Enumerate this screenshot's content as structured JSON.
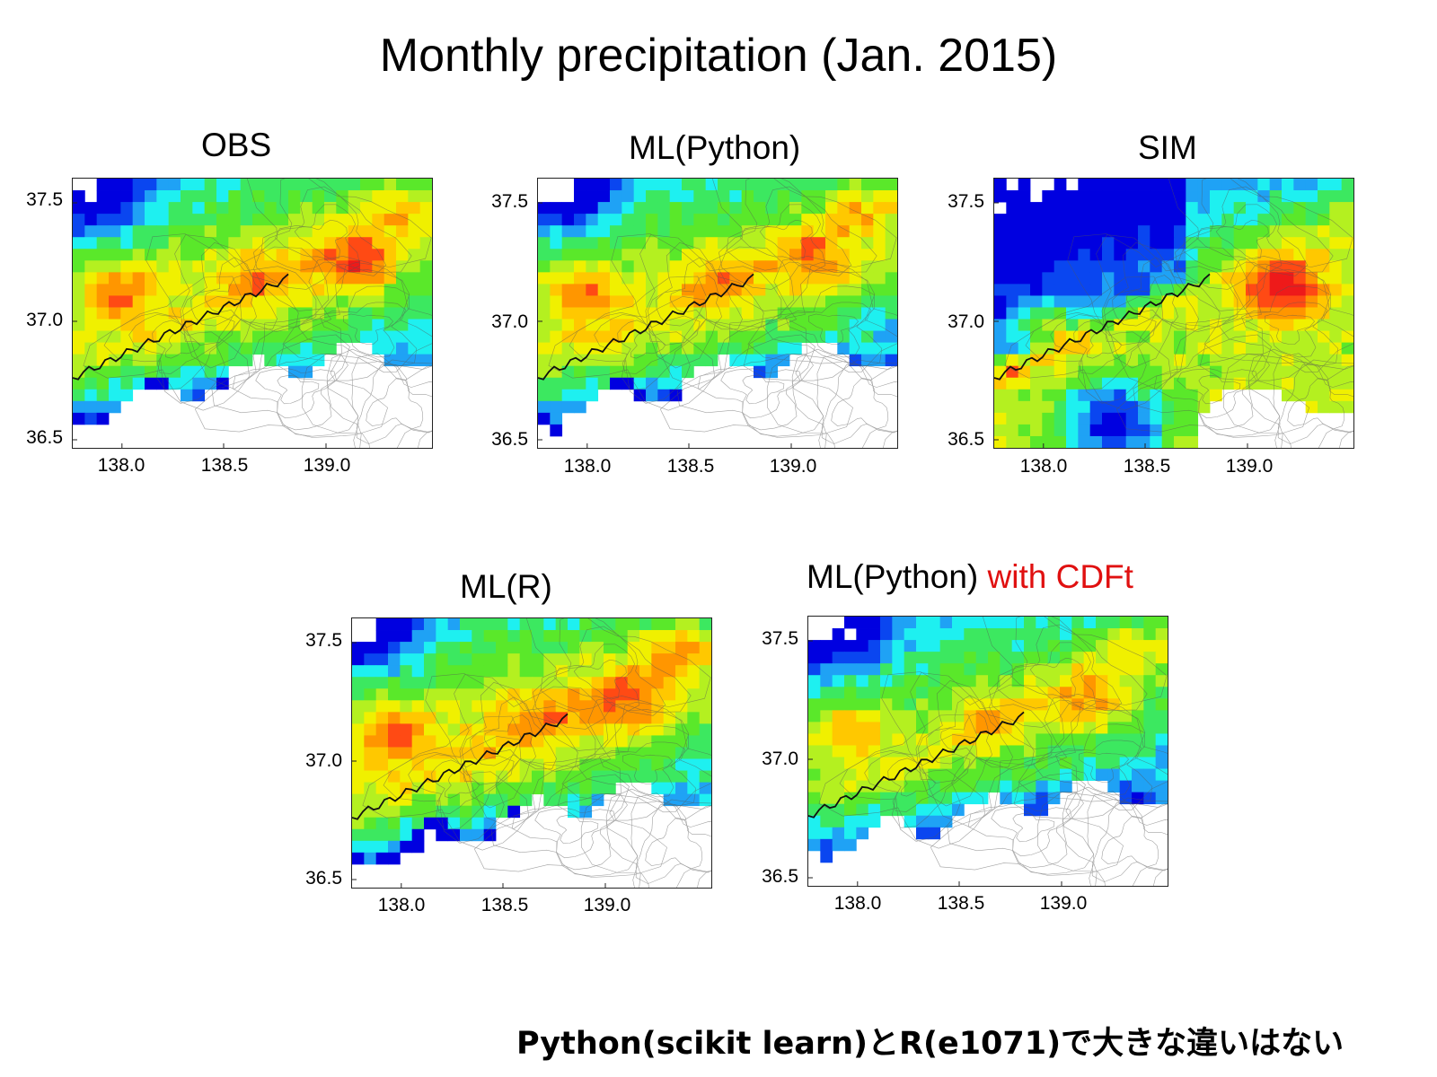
{
  "title": "Monthly precipitation (Jan. 2015)",
  "footnote": "Python(scikit learn)とR(e1071)で大きな違いはない",
  "axes": {
    "y_ticks": [
      "37.5",
      "37.0",
      "36.5"
    ],
    "x_ticks": [
      "138.0",
      "138.5",
      "139.0"
    ]
  },
  "colors": {
    "accent": "#e01010",
    "colormap": [
      "#0000e0",
      "#0a46f0",
      "#1fa2f5",
      "#1ef0f0",
      "#3ce860",
      "#5ae82a",
      "#b4f020",
      "#f0f000",
      "#ffc800",
      "#ff9600",
      "#ff4a14",
      "#ee1a1a"
    ]
  },
  "panels": [
    {
      "id": "obs",
      "title": "OBS",
      "accent_suffix": ""
    },
    {
      "id": "ml-python",
      "title": "ML(Python)",
      "accent_suffix": ""
    },
    {
      "id": "sim",
      "title": "SIM",
      "accent_suffix": ""
    },
    {
      "id": "ml-r",
      "title": "ML(R)",
      "accent_suffix": ""
    },
    {
      "id": "ml-python-cdft",
      "title": "ML(Python) ",
      "accent_suffix": "with CDFt"
    }
  ]
}
